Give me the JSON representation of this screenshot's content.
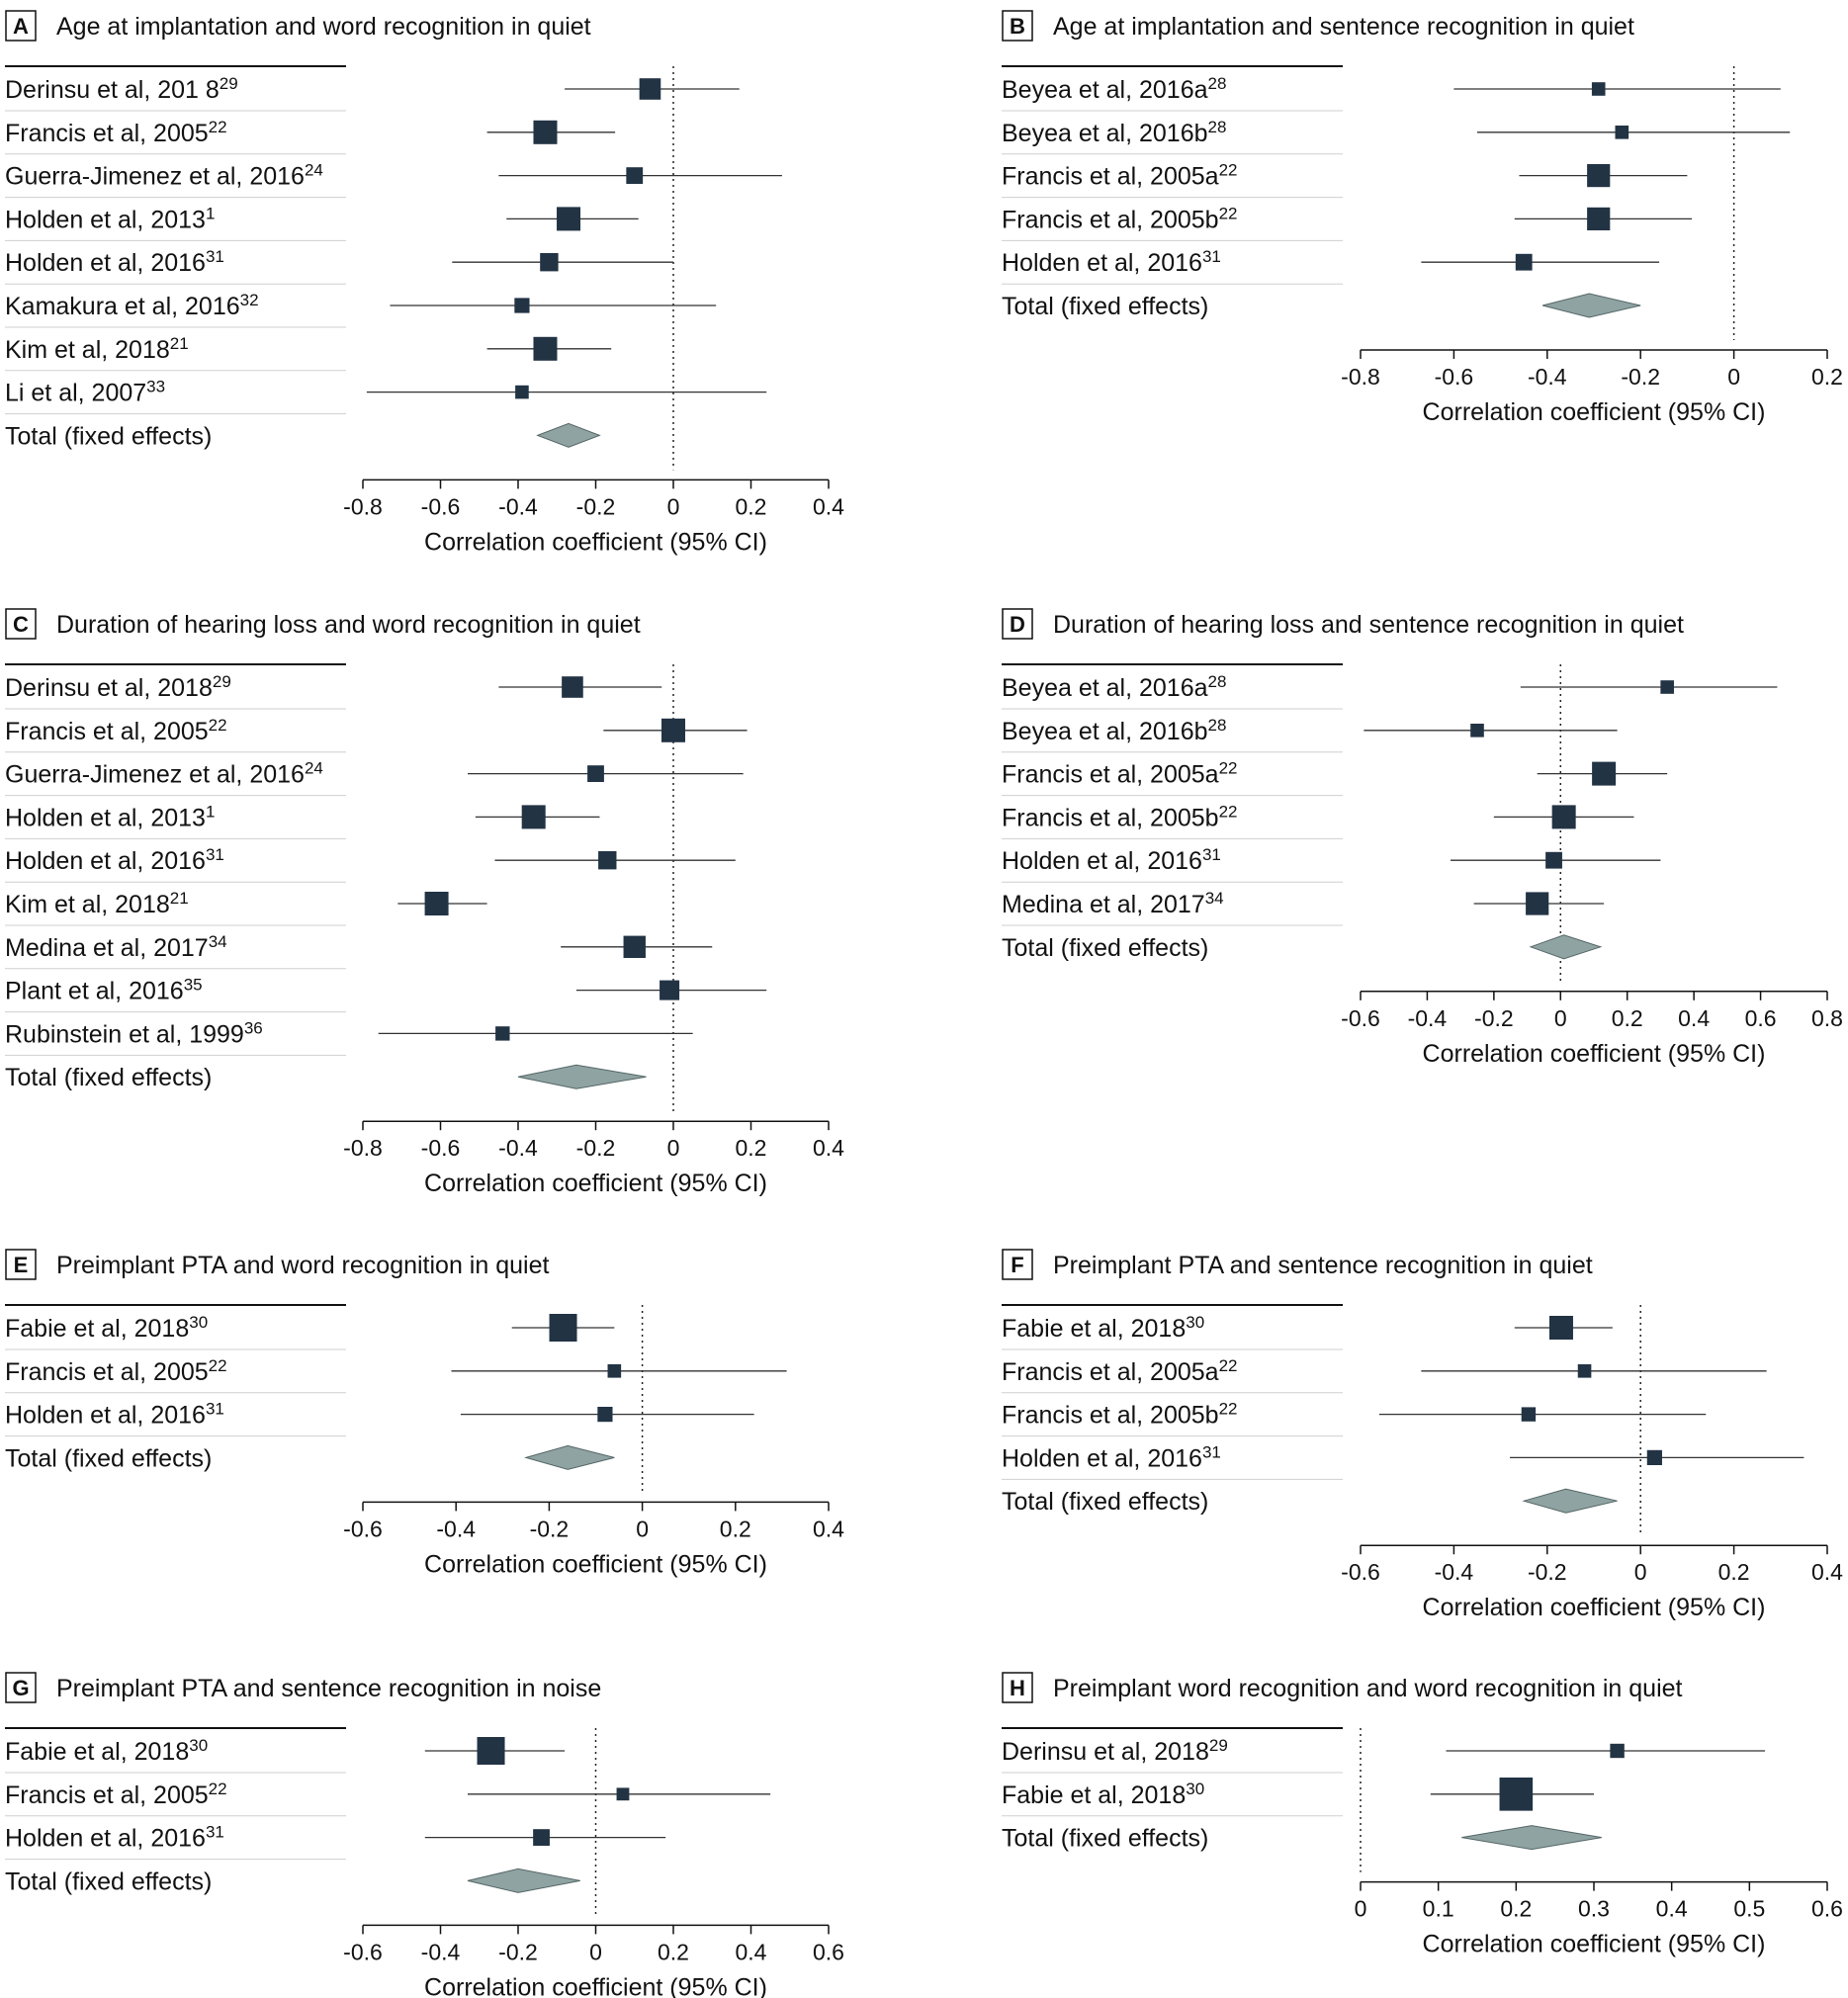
{
  "style": {
    "marker_color": "#223344",
    "diamond_color": "#8fa3a3"
  },
  "chart_data": [
    {
      "type": "forest",
      "panel": "A",
      "title": "Age at implantation and word recognition in quiet",
      "xlabel": "Correlation coefficient (95% CI)",
      "xlim": [
        -0.8,
        0.4
      ],
      "ticks": [
        -0.8,
        -0.6,
        -0.4,
        -0.2,
        0,
        0.2,
        0.4
      ],
      "tick_labels": [
        "-0.8",
        "-0.6",
        "-0.4",
        "-0.2",
        "0",
        "0.2",
        "0.4"
      ],
      "reference_line": 0,
      "studies": [
        {
          "label": "Derinsu et al, 201 8",
          "ref": "29",
          "estimate": -0.06,
          "ci": [
            -0.28,
            0.17
          ],
          "weight": 0.85
        },
        {
          "label": "Francis et al, 2005",
          "ref": "22",
          "estimate": -0.33,
          "ci": [
            -0.48,
            -0.15
          ],
          "weight": 1.0
        },
        {
          "label": "Guerra-Jimenez et al, 2016",
          "ref": "24",
          "estimate": -0.1,
          "ci": [
            -0.45,
            0.28
          ],
          "weight": 0.55
        },
        {
          "label": "Holden et al, 2013",
          "ref": "1",
          "estimate": -0.27,
          "ci": [
            -0.43,
            -0.09
          ],
          "weight": 1.0
        },
        {
          "label": "Holden et al, 2016",
          "ref": "31",
          "estimate": -0.32,
          "ci": [
            -0.57,
            0.0
          ],
          "weight": 0.65
        },
        {
          "label": "Kamakura et al, 2016",
          "ref": "32",
          "estimate": -0.39,
          "ci": [
            -0.73,
            0.11
          ],
          "weight": 0.45
        },
        {
          "label": "Kim et al, 2018",
          "ref": "21",
          "estimate": -0.33,
          "ci": [
            -0.48,
            -0.16
          ],
          "weight": 1.0
        },
        {
          "label": "Li et al, 2007",
          "ref": "33",
          "estimate": -0.39,
          "ci": [
            -0.79,
            0.24
          ],
          "weight": 0.35
        }
      ],
      "total": {
        "label": "Total (fixed effects)",
        "estimate": -0.27,
        "ci": [
          -0.35,
          -0.19
        ]
      }
    },
    {
      "type": "forest",
      "panel": "B",
      "title": "Age at implantation and sentence recognition in quiet",
      "xlabel": "Correlation coefficient (95% CI)",
      "xlim": [
        -0.8,
        0.2
      ],
      "ticks": [
        -0.8,
        -0.6,
        -0.4,
        -0.2,
        0,
        0.2
      ],
      "tick_labels": [
        "-0.8",
        "-0.6",
        "-0.4",
        "-0.2",
        "0",
        "0.2"
      ],
      "reference_line": 0,
      "studies": [
        {
          "label": "Beyea et al, 2016a",
          "ref": "28",
          "estimate": -0.29,
          "ci": [
            -0.6,
            0.1
          ],
          "weight": 0.35
        },
        {
          "label": "Beyea et al, 2016b",
          "ref": "28",
          "estimate": -0.24,
          "ci": [
            -0.55,
            0.12
          ],
          "weight": 0.35
        },
        {
          "label": "Francis et al, 2005a",
          "ref": "22",
          "estimate": -0.29,
          "ci": [
            -0.46,
            -0.1
          ],
          "weight": 0.95
        },
        {
          "label": "Francis et al, 2005b",
          "ref": "22",
          "estimate": -0.29,
          "ci": [
            -0.47,
            -0.09
          ],
          "weight": 0.95
        },
        {
          "label": "Holden et al, 2016",
          "ref": "31",
          "estimate": -0.45,
          "ci": [
            -0.67,
            -0.16
          ],
          "weight": 0.55
        }
      ],
      "total": {
        "label": "Total (fixed effects)",
        "estimate": -0.31,
        "ci": [
          -0.41,
          -0.2
        ]
      }
    },
    {
      "type": "forest",
      "panel": "C",
      "title": "Duration of hearing loss and word recognition in quiet",
      "xlabel": "Correlation coefficient (95% CI)",
      "xlim": [
        -0.8,
        0.4
      ],
      "ticks": [
        -0.8,
        -0.6,
        -0.4,
        -0.2,
        0,
        0.2,
        0.4
      ],
      "tick_labels": [
        "-0.8",
        "-0.6",
        "-0.4",
        "-0.2",
        "0",
        "0.2",
        "0.4"
      ],
      "reference_line": 0,
      "studies": [
        {
          "label": "Derinsu et al, 2018",
          "ref": "29",
          "estimate": -0.26,
          "ci": [
            -0.45,
            -0.03
          ],
          "weight": 0.85
        },
        {
          "label": "Francis et al, 2005",
          "ref": "22",
          "estimate": 0.0,
          "ci": [
            -0.18,
            0.19
          ],
          "weight": 1.0
        },
        {
          "label": "Guerra-Jimenez et al, 2016",
          "ref": "24",
          "estimate": -0.2,
          "ci": [
            -0.53,
            0.18
          ],
          "weight": 0.55
        },
        {
          "label": "Holden et al, 2013",
          "ref": "1",
          "estimate": -0.36,
          "ci": [
            -0.51,
            -0.19
          ],
          "weight": 1.0
        },
        {
          "label": "Holden et al, 2016",
          "ref": "31",
          "estimate": -0.17,
          "ci": [
            -0.46,
            0.16
          ],
          "weight": 0.65
        },
        {
          "label": "Kim et al, 2018",
          "ref": "21",
          "estimate": -0.61,
          "ci": [
            -0.71,
            -0.48
          ],
          "weight": 1.0
        },
        {
          "label": "Medina et al, 2017",
          "ref": "34",
          "estimate": -0.1,
          "ci": [
            -0.29,
            0.1
          ],
          "weight": 0.9
        },
        {
          "label": "Plant et al, 2016",
          "ref": "35",
          "estimate": -0.01,
          "ci": [
            -0.25,
            0.24
          ],
          "weight": 0.75
        },
        {
          "label": "Rubinstein et al, 1999",
          "ref": "36",
          "estimate": -0.44,
          "ci": [
            -0.76,
            0.05
          ],
          "weight": 0.4
        }
      ],
      "total": {
        "label": "Total (fixed effects)",
        "estimate": -0.25,
        "ci": [
          -0.4,
          -0.07
        ]
      }
    },
    {
      "type": "forest",
      "panel": "D",
      "title": "Duration of hearing loss and sentence recognition in quiet",
      "xlabel": "Correlation coefficient (95% CI)",
      "xlim": [
        -0.6,
        0.8
      ],
      "ticks": [
        -0.6,
        -0.4,
        -0.2,
        0,
        0.2,
        0.4,
        0.6,
        0.8
      ],
      "tick_labels": [
        "-0.6",
        "-0.4",
        "-0.2",
        "0",
        "0.2",
        "0.4",
        "0.6",
        "0.8"
      ],
      "reference_line": 0,
      "studies": [
        {
          "label": "Beyea et al, 2016a",
          "ref": "28",
          "estimate": 0.32,
          "ci": [
            -0.12,
            0.65
          ],
          "weight": 0.35
        },
        {
          "label": "Beyea et al, 2016b",
          "ref": "28",
          "estimate": -0.25,
          "ci": [
            -0.59,
            0.17
          ],
          "weight": 0.35
        },
        {
          "label": "Francis et al, 2005a",
          "ref": "22",
          "estimate": 0.13,
          "ci": [
            -0.07,
            0.32
          ],
          "weight": 1.0
        },
        {
          "label": "Francis et al, 2005b",
          "ref": "22",
          "estimate": 0.01,
          "ci": [
            -0.2,
            0.22
          ],
          "weight": 1.0
        },
        {
          "label": "Holden et al, 2016",
          "ref": "31",
          "estimate": -0.02,
          "ci": [
            -0.33,
            0.3
          ],
          "weight": 0.55
        },
        {
          "label": "Medina et al, 2017",
          "ref": "34",
          "estimate": -0.07,
          "ci": [
            -0.26,
            0.13
          ],
          "weight": 0.95
        }
      ],
      "total": {
        "label": "Total (fixed effects)",
        "estimate": 0.01,
        "ci": [
          -0.09,
          0.12
        ]
      }
    },
    {
      "type": "forest",
      "panel": "E",
      "title": "Preimplant PTA and word recognition in quiet",
      "xlabel": "Correlation coefficient (95% CI)",
      "xlim": [
        -0.6,
        0.4
      ],
      "ticks": [
        -0.6,
        -0.4,
        -0.2,
        0,
        0.2,
        0.4
      ],
      "tick_labels": [
        "-0.6",
        "-0.4",
        "-0.2",
        "0",
        "0.2",
        "0.4"
      ],
      "reference_line": 0,
      "studies": [
        {
          "label": "Fabie et al, 2018",
          "ref": "30",
          "estimate": -0.17,
          "ci": [
            -0.28,
            -0.06
          ],
          "weight": 1.25
        },
        {
          "label": "Francis et al, 2005",
          "ref": "22",
          "estimate": -0.06,
          "ci": [
            -0.41,
            0.31
          ],
          "weight": 0.35
        },
        {
          "label": "Holden et al, 2016",
          "ref": "31",
          "estimate": -0.08,
          "ci": [
            -0.39,
            0.24
          ],
          "weight": 0.45
        }
      ],
      "total": {
        "label": "Total (fixed effects)",
        "estimate": -0.16,
        "ci": [
          -0.25,
          -0.06
        ]
      }
    },
    {
      "type": "forest",
      "panel": "F",
      "title": "Preimplant PTA and sentence recognition in quiet",
      "xlabel": "Correlation coefficient (95% CI)",
      "xlim": [
        -0.6,
        0.4
      ],
      "ticks": [
        -0.6,
        -0.4,
        -0.2,
        0,
        0.2,
        0.4
      ],
      "tick_labels": [
        "-0.6",
        "-0.4",
        "-0.2",
        "0",
        "0.2",
        "0.4"
      ],
      "reference_line": 0,
      "studies": [
        {
          "label": "Fabie et al, 2018",
          "ref": "30",
          "estimate": -0.17,
          "ci": [
            -0.27,
            -0.06
          ],
          "weight": 1.0
        },
        {
          "label": "Francis et al, 2005a",
          "ref": "22",
          "estimate": -0.12,
          "ci": [
            -0.47,
            0.27
          ],
          "weight": 0.35
        },
        {
          "label": "Francis et al, 2005b",
          "ref": "22",
          "estimate": -0.24,
          "ci": [
            -0.56,
            0.14
          ],
          "weight": 0.4
        },
        {
          "label": "Holden et al, 2016",
          "ref": "31",
          "estimate": 0.03,
          "ci": [
            -0.28,
            0.35
          ],
          "weight": 0.45
        }
      ],
      "total": {
        "label": "Total (fixed effects)",
        "estimate": -0.16,
        "ci": [
          -0.25,
          -0.05
        ]
      }
    },
    {
      "type": "forest",
      "panel": "G",
      "title": "Preimplant PTA and sentence recognition in noise",
      "xlabel": "Correlation coefficient (95% CI)",
      "xlim": [
        -0.6,
        0.6
      ],
      "ticks": [
        -0.6,
        -0.4,
        -0.2,
        0,
        0.2,
        0.4,
        0.6
      ],
      "tick_labels": [
        "-0.6",
        "-0.4",
        "-0.2",
        "0",
        "0.2",
        "0.4",
        "0.6"
      ],
      "reference_line": 0,
      "studies": [
        {
          "label": "Fabie et al, 2018",
          "ref": "30",
          "estimate": -0.27,
          "ci": [
            -0.44,
            -0.08
          ],
          "weight": 1.25
        },
        {
          "label": "Francis et al, 2005",
          "ref": "22",
          "estimate": 0.07,
          "ci": [
            -0.33,
            0.45
          ],
          "weight": 0.3
        },
        {
          "label": "Holden et al, 2016",
          "ref": "31",
          "estimate": -0.14,
          "ci": [
            -0.44,
            0.18
          ],
          "weight": 0.55
        }
      ],
      "total": {
        "label": "Total (fixed effects)",
        "estimate": -0.2,
        "ci": [
          -0.33,
          -0.04
        ]
      }
    },
    {
      "type": "forest",
      "panel": "H",
      "title": "Preimplant word recognition and word recognition in quiet",
      "xlabel": "Correlation coefficient (95% CI)",
      "xlim": [
        0,
        0.6
      ],
      "ticks": [
        0,
        0.1,
        0.2,
        0.3,
        0.4,
        0.5,
        0.6
      ],
      "tick_labels": [
        "0",
        "0.1",
        "0.2",
        "0.3",
        "0.4",
        "0.5",
        "0.6"
      ],
      "reference_line": 0,
      "studies": [
        {
          "label": "Derinsu et al, 2018",
          "ref": "29",
          "estimate": 0.33,
          "ci": [
            0.11,
            0.52
          ],
          "weight": 0.4
        },
        {
          "label": "Fabie et al, 2018",
          "ref": "30",
          "estimate": 0.2,
          "ci": [
            0.09,
            0.3
          ],
          "weight": 1.6
        }
      ],
      "total": {
        "label": "Total (fixed effects)",
        "estimate": 0.22,
        "ci": [
          0.13,
          0.31
        ]
      }
    }
  ]
}
